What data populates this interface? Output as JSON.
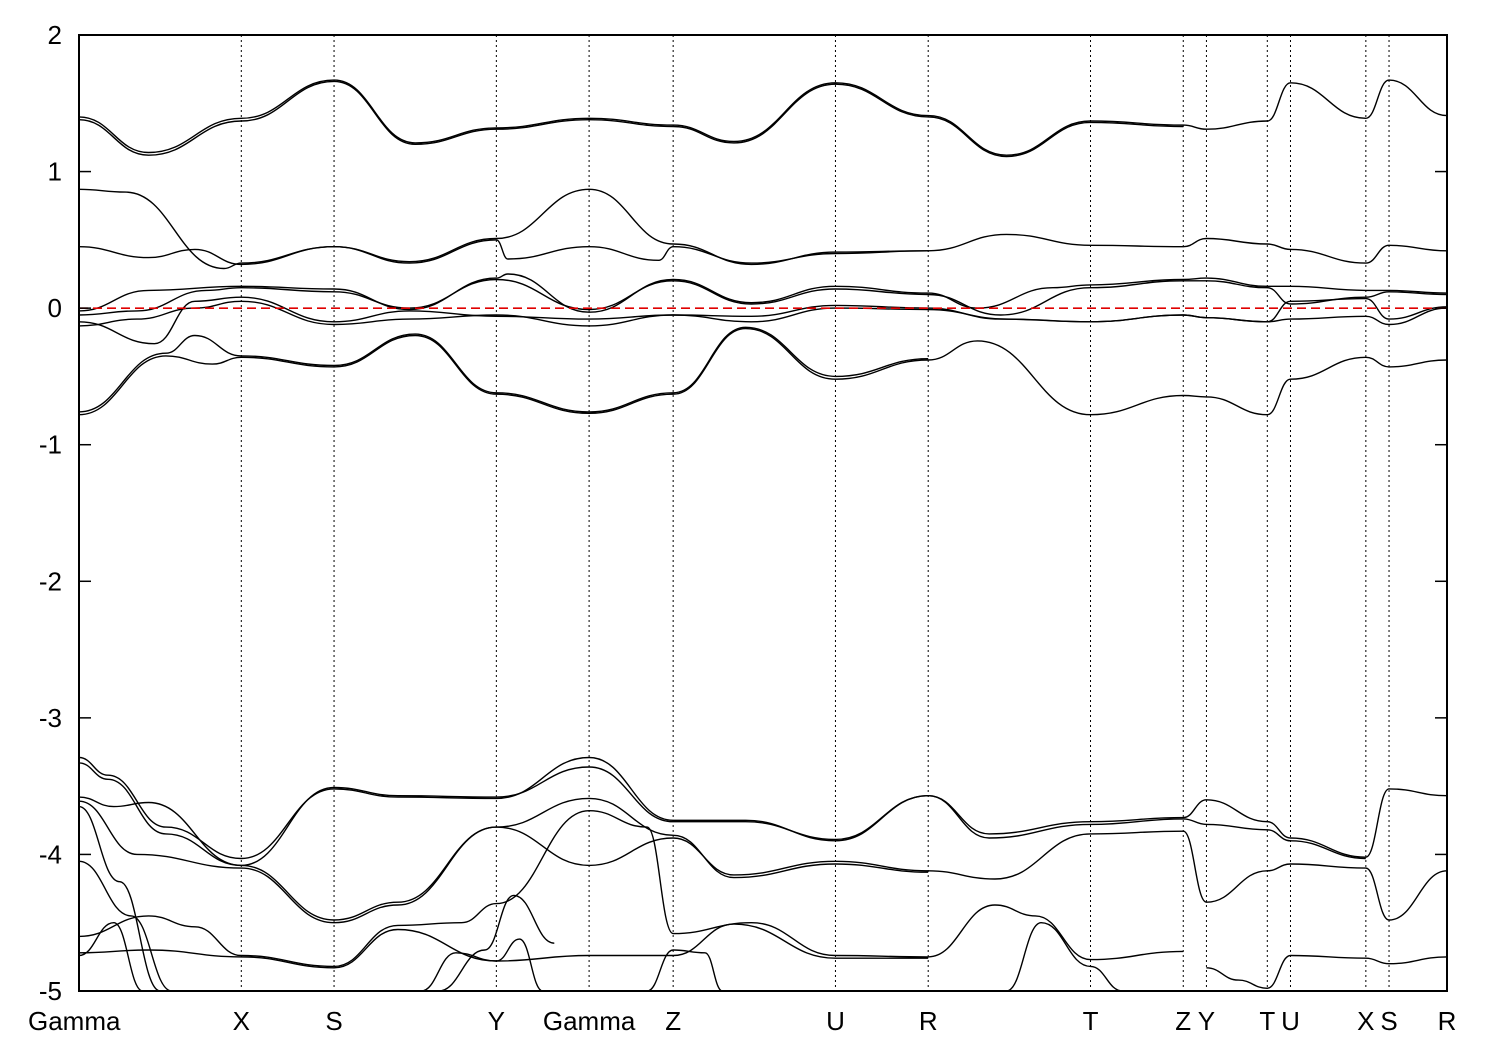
{
  "chart_data": {
    "type": "line",
    "title": "",
    "xlabel": "",
    "ylabel": "",
    "ylim": [
      -5,
      2
    ],
    "yticks": [
      2,
      1,
      0,
      -1,
      -2,
      -3,
      -4,
      -5
    ],
    "ytick_labels": [
      "2",
      "1",
      "0",
      "-1",
      "-2",
      "-3",
      "-4",
      "-5"
    ],
    "xlim": [
      0,
      23.6
    ],
    "high_symmetry_points": [
      {
        "label": "Gamma",
        "x": 0.0
      },
      {
        "label": "X",
        "x": 2.8
      },
      {
        "label": "S",
        "x": 4.4
      },
      {
        "label": "Y",
        "x": 7.2
      },
      {
        "label": "Gamma",
        "x": 8.8
      },
      {
        "label": "Z",
        "x": 10.25
      },
      {
        "label": "U",
        "x": 13.05
      },
      {
        "label": "R",
        "x": 14.65
      },
      {
        "label": "T",
        "x": 17.45
      },
      {
        "label": "Z",
        "x": 19.05
      },
      {
        "label": "Y",
        "x": 19.45
      },
      {
        "label": "T",
        "x": 20.5
      },
      {
        "label": "U",
        "x": 20.9
      },
      {
        "label": "X",
        "x": 22.2
      },
      {
        "label": "S",
        "x": 22.6
      },
      {
        "label": "R",
        "x": 23.6
      }
    ],
    "fermi_level": 0,
    "grid": false,
    "line_color": "#000000",
    "fermi_color": "#e00000",
    "series": [
      {
        "x": [
          0,
          1.2,
          2.8,
          4.4,
          5.8,
          7.2,
          8.8,
          10.25,
          11.3,
          13.05,
          14.65,
          16.0,
          17.45,
          19.05,
          19.45,
          20.5,
          20.9,
          22.2,
          22.6,
          23.6
        ],
        "y": [
          1.4,
          1.14,
          1.39,
          1.67,
          1.21,
          1.32,
          1.39,
          1.34,
          1.22,
          1.65,
          1.41,
          1.12,
          1.37,
          1.34,
          1.31,
          1.37,
          1.65,
          1.39,
          1.67,
          1.41
        ]
      },
      {
        "x": [
          0,
          1.2,
          2.8,
          4.4,
          5.8,
          7.2,
          8.8,
          10.25,
          11.3,
          13.05,
          14.65,
          16.0,
          17.45,
          19.05
        ],
        "y": [
          1.38,
          1.12,
          1.37,
          1.66,
          1.2,
          1.31,
          1.38,
          1.33,
          1.21,
          1.64,
          1.4,
          1.11,
          1.36,
          1.33
        ]
      },
      {
        "x": [
          0,
          0.8,
          2.5,
          2.8,
          4.4,
          5.7,
          7.2,
          8.8,
          10.25,
          11.6,
          13.05,
          14.65,
          16.0,
          17.45,
          19.05,
          19.45,
          20.5,
          20.9,
          22.2,
          22.6,
          23.6
        ],
        "y": [
          0.87,
          0.85,
          0.29,
          0.33,
          0.45,
          0.34,
          0.51,
          0.87,
          0.47,
          0.32,
          0.41,
          0.42,
          0.54,
          0.46,
          0.45,
          0.51,
          0.47,
          0.43,
          0.33,
          0.46,
          0.42
        ]
      },
      {
        "x": [
          0,
          1.2,
          2.0,
          2.8,
          4.4,
          5.7,
          7.2,
          7.4,
          8.8,
          10.0,
          10.25,
          11.6,
          13.05,
          14.65
        ],
        "y": [
          0.45,
          0.37,
          0.43,
          0.32,
          0.45,
          0.33,
          0.5,
          0.36,
          0.45,
          0.35,
          0.45,
          0.33,
          0.4,
          0.42
        ]
      },
      {
        "x": [
          0,
          1.2,
          2.8,
          4.4,
          5.7,
          7.2,
          7.4,
          8.8,
          10.25,
          11.6,
          13.05,
          14.65,
          15.5,
          16.8,
          17.45,
          19.05,
          19.45,
          20.5,
          20.9,
          22.2,
          22.6,
          23.6
        ],
        "y": [
          -0.02,
          0.13,
          0.16,
          0.14,
          -0.01,
          0.22,
          0.25,
          -0.03,
          0.21,
          0.04,
          0.16,
          0.11,
          0.0,
          0.15,
          0.17,
          0.21,
          0.22,
          0.16,
          0.16,
          0.13,
          0.13,
          0.11
        ]
      },
      {
        "x": [
          0,
          1.0,
          2.2,
          2.8,
          4.4,
          5.7,
          7.2,
          8.8,
          10.25,
          11.6,
          13.05,
          14.65,
          15.9,
          17.45,
          19.05,
          19.45,
          20.5,
          20.9,
          22.2,
          22.6,
          23.6
        ],
        "y": [
          -0.05,
          -0.02,
          0.13,
          0.15,
          0.12,
          0.0,
          0.21,
          -0.01,
          0.2,
          0.03,
          0.14,
          0.1,
          -0.05,
          0.15,
          0.2,
          0.2,
          0.15,
          0.03,
          0.08,
          0.12,
          0.1
        ]
      },
      {
        "x": [
          0,
          1.3,
          2.0,
          2.8,
          4.4,
          5.7,
          7.2,
          8.8,
          10.25,
          11.6,
          13.05,
          14.65,
          15.9,
          17.45,
          19.05,
          19.45,
          20.5,
          20.9,
          22.2,
          22.6,
          23.6
        ],
        "y": [
          -0.1,
          -0.26,
          0.05,
          0.08,
          -0.1,
          -0.02,
          -0.06,
          -0.08,
          -0.05,
          -0.06,
          0.02,
          0.0,
          -0.08,
          -0.1,
          -0.05,
          -0.07,
          -0.1,
          0.05,
          0.07,
          -0.08,
          0.01
        ]
      },
      {
        "x": [
          0,
          1.0,
          2.0,
          2.8,
          4.4,
          5.7,
          7.2,
          8.8,
          10.25,
          11.6,
          13.05,
          14.65,
          16.0,
          17.45,
          19.05,
          19.45,
          20.5,
          20.9,
          22.2,
          22.6,
          23.6
        ],
        "y": [
          -0.13,
          -0.08,
          0.0,
          0.05,
          -0.12,
          -0.08,
          -0.05,
          -0.13,
          -0.05,
          -0.1,
          0.0,
          -0.01,
          -0.08,
          -0.1,
          -0.05,
          -0.07,
          -0.1,
          -0.08,
          -0.06,
          -0.12,
          0.0
        ]
      },
      {
        "x": [
          0,
          1.5,
          2.3,
          2.8,
          4.4,
          5.8,
          7.2,
          8.8,
          10.25,
          11.5,
          13.05,
          14.65,
          15.5,
          17.45,
          19.05,
          19.45,
          20.5,
          20.9,
          22.2,
          22.6,
          23.6
        ],
        "y": [
          -0.78,
          -0.35,
          -0.41,
          -0.36,
          -0.43,
          -0.2,
          -0.63,
          -0.77,
          -0.63,
          -0.15,
          -0.52,
          -0.38,
          -0.24,
          -0.78,
          -0.64,
          -0.65,
          -0.78,
          -0.52,
          -0.36,
          -0.43,
          -0.38
        ]
      },
      {
        "x": [
          0,
          1.5,
          2.0,
          2.8,
          4.4,
          5.8,
          7.2,
          8.8,
          10.25,
          11.5,
          13.05,
          14.65
        ],
        "y": [
          -0.76,
          -0.33,
          -0.2,
          -0.35,
          -0.42,
          -0.19,
          -0.62,
          -0.76,
          -0.62,
          -0.14,
          -0.5,
          -0.37
        ]
      },
      {
        "x": [
          0,
          0.5,
          1.5,
          2.8,
          4.4,
          5.5,
          7.2,
          8.8,
          10.25,
          11.5,
          13.05,
          14.65,
          15.7,
          17.45,
          19.05,
          19.45,
          20.5,
          20.9,
          22.2,
          22.6,
          23.6
        ],
        "y": [
          -3.29,
          -3.42,
          -3.8,
          -4.03,
          -3.52,
          -3.58,
          -3.59,
          -3.29,
          -3.75,
          -3.75,
          -3.9,
          -3.57,
          -3.85,
          -3.76,
          -3.73,
          -3.6,
          -3.76,
          -3.88,
          -4.02,
          -3.52,
          -3.57
        ]
      },
      {
        "x": [
          0,
          0.5,
          1.5,
          2.8,
          4.4,
          5.5,
          7.2,
          8.8,
          10.25,
          11.5,
          13.05,
          14.65,
          15.7,
          17.45,
          19.05,
          19.45,
          20.5,
          20.9,
          22.2
        ],
        "y": [
          -3.33,
          -3.45,
          -3.85,
          -4.08,
          -3.51,
          -3.57,
          -3.58,
          -3.36,
          -3.76,
          -3.76,
          -3.89,
          -3.57,
          -3.88,
          -3.78,
          -3.74,
          -3.78,
          -3.82,
          -3.9,
          -4.03
        ]
      },
      {
        "x": [
          0,
          0.6,
          1.2,
          2.8,
          4.4,
          5.5,
          7.2,
          8.8,
          10.25,
          11.3,
          13.05,
          14.65,
          15.8,
          17.45,
          19.05,
          19.45,
          20.5,
          20.9,
          22.2,
          22.6,
          23.6
        ],
        "y": [
          -3.58,
          -3.65,
          -3.62,
          -4.08,
          -4.48,
          -4.35,
          -3.8,
          -4.08,
          -3.88,
          -4.15,
          -4.05,
          -4.12,
          -4.18,
          -3.85,
          -3.83,
          -4.35,
          -4.12,
          -4.07,
          -4.1,
          -4.48,
          -4.12
        ]
      },
      {
        "x": [
          0,
          1.0,
          2.8,
          4.4,
          5.5,
          7.2,
          8.8,
          10.25,
          11.3,
          13.05,
          14.65
        ],
        "y": [
          -3.61,
          -4.0,
          -4.1,
          -4.5,
          -4.37,
          -3.8,
          -3.59,
          -3.86,
          -4.17,
          -4.07,
          -4.13
        ]
      },
      {
        "x": [
          0,
          1.2,
          2.0,
          2.8,
          4.4,
          5.5,
          6.6,
          7.2,
          8.8,
          9.8,
          10.25,
          11.6,
          13.05,
          14.65,
          15.8,
          16.5,
          17.45,
          19.05
        ],
        "y": [
          -4.6,
          -4.45,
          -4.53,
          -4.74,
          -4.82,
          -4.52,
          -4.5,
          -4.36,
          -3.68,
          -3.8,
          -4.58,
          -4.5,
          -4.74,
          -4.75,
          -4.37,
          -4.45,
          -4.77,
          -4.71
        ]
      },
      {
        "x": [
          0,
          1.2,
          2.8,
          4.4,
          5.5,
          7.2,
          8.8,
          10.25,
          11.3,
          13.05,
          14.65
        ],
        "y": [
          -4.72,
          -4.7,
          -4.75,
          -4.83,
          -4.55,
          -4.78,
          -4.74,
          -4.74,
          -4.51,
          -4.76,
          -4.76
        ]
      },
      {
        "x": [
          0,
          0.7,
          1.4
        ],
        "y": [
          -3.65,
          -4.2,
          -5.0
        ]
      },
      {
        "x": [
          0,
          0.9,
          1.6
        ],
        "y": [
          -4.05,
          -4.45,
          -5.0
        ]
      },
      {
        "x": [
          0,
          0.6,
          1.1
        ],
        "y": [
          -4.74,
          -4.5,
          -5.0
        ]
      },
      {
        "x": [
          5.9,
          6.5,
          7.2,
          7.6,
          8.0
        ],
        "y": [
          -5.0,
          -4.72,
          -4.78,
          -4.62,
          -5.0
        ]
      },
      {
        "x": [
          6.2,
          7.0,
          7.5,
          8.2
        ],
        "y": [
          -5.0,
          -4.7,
          -4.3,
          -4.65
        ]
      },
      {
        "x": [
          9.8,
          10.25,
          10.8,
          11.1
        ],
        "y": [
          -5.0,
          -4.7,
          -4.72,
          -5.0
        ]
      },
      {
        "x": [
          16.0,
          16.6,
          17.45,
          18.0
        ],
        "y": [
          -5.0,
          -4.5,
          -4.82,
          -5.0
        ]
      },
      {
        "x": [
          19.45,
          20.0,
          20.5,
          20.9,
          22.2,
          22.6,
          23.6
        ],
        "y": [
          -4.83,
          -4.92,
          -4.98,
          -4.74,
          -4.76,
          -4.8,
          -4.75
        ]
      }
    ]
  }
}
